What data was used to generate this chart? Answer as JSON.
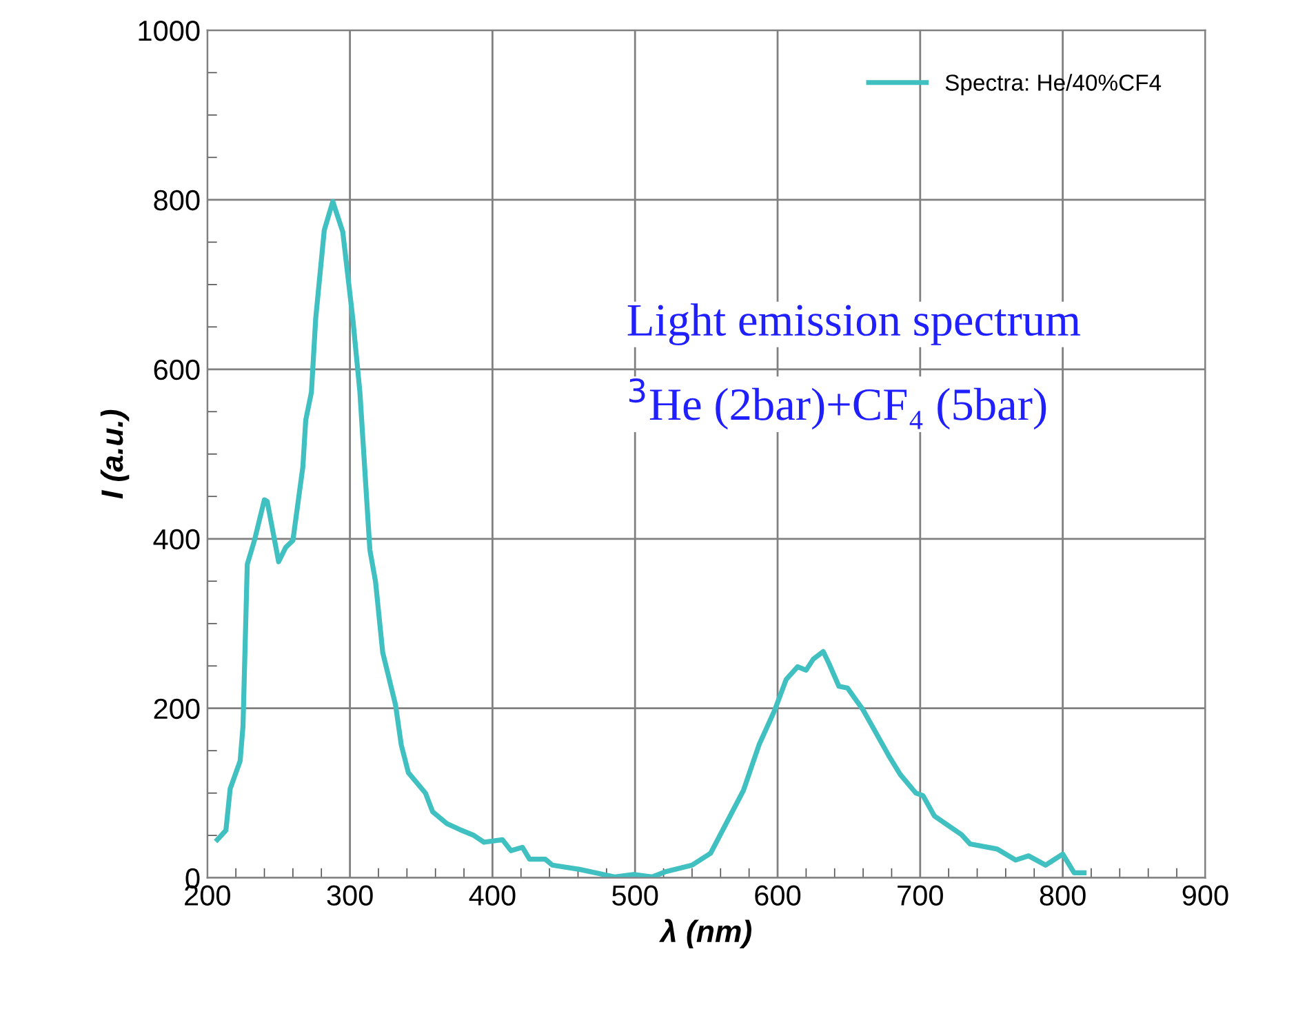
{
  "chart_data": {
    "type": "line",
    "xlabel": "λ (nm)",
    "ylabel": "I (a.u.)",
    "xlim": [
      200,
      900
    ],
    "xticks": [
      200,
      300,
      400,
      500,
      600,
      700,
      800,
      900
    ],
    "ylim": [
      0,
      1000
    ],
    "yticks": [
      0,
      200,
      400,
      600,
      800,
      1000
    ],
    "grid": true,
    "legend": "top right",
    "marker": "none",
    "line_style": "solid",
    "annotations": [
      "Light emission spectrum",
      "$^{3}$He (2bar)+CF₄ (5bar)"
    ],
    "series": [
      {
        "name": "Spectra: He/40%CF4",
        "color": "#40c0c0",
        "x": [
          207,
          213,
          216,
          223,
          225,
          228,
          233,
          240,
          242,
          250,
          255,
          260,
          267,
          269,
          273,
          276,
          282,
          288,
          295,
          302,
          307,
          314,
          318,
          323,
          332,
          336,
          341,
          353,
          358,
          368,
          377,
          387,
          394,
          407,
          413,
          421,
          426,
          437,
          442,
          461,
          486,
          499,
          512,
          521,
          540,
          553,
          576,
          587,
          598,
          606,
          614,
          620,
          625,
          632,
          636,
          643,
          649,
          660,
          678,
          686,
          697,
          702,
          710,
          729,
          735,
          754,
          767,
          776,
          788,
          800,
          808,
          815
        ],
        "values": [
          45,
          56,
          105,
          138,
          179,
          370,
          398,
          446,
          444,
          373,
          390,
          398,
          485,
          540,
          573,
          660,
          764,
          798,
          762,
          660,
          573,
          387,
          349,
          266,
          204,
          157,
          124,
          100,
          78,
          64,
          57,
          50,
          42,
          45,
          32,
          36,
          22,
          22,
          15,
          10,
          1,
          4,
          1,
          7,
          15,
          29,
          103,
          157,
          198,
          234,
          249,
          245,
          258,
          267,
          253,
          226,
          224,
          198,
          144,
          122,
          100,
          97,
          73,
          51,
          40,
          34,
          21,
          26,
          15,
          28,
          6,
          6
        ]
      }
    ]
  }
}
